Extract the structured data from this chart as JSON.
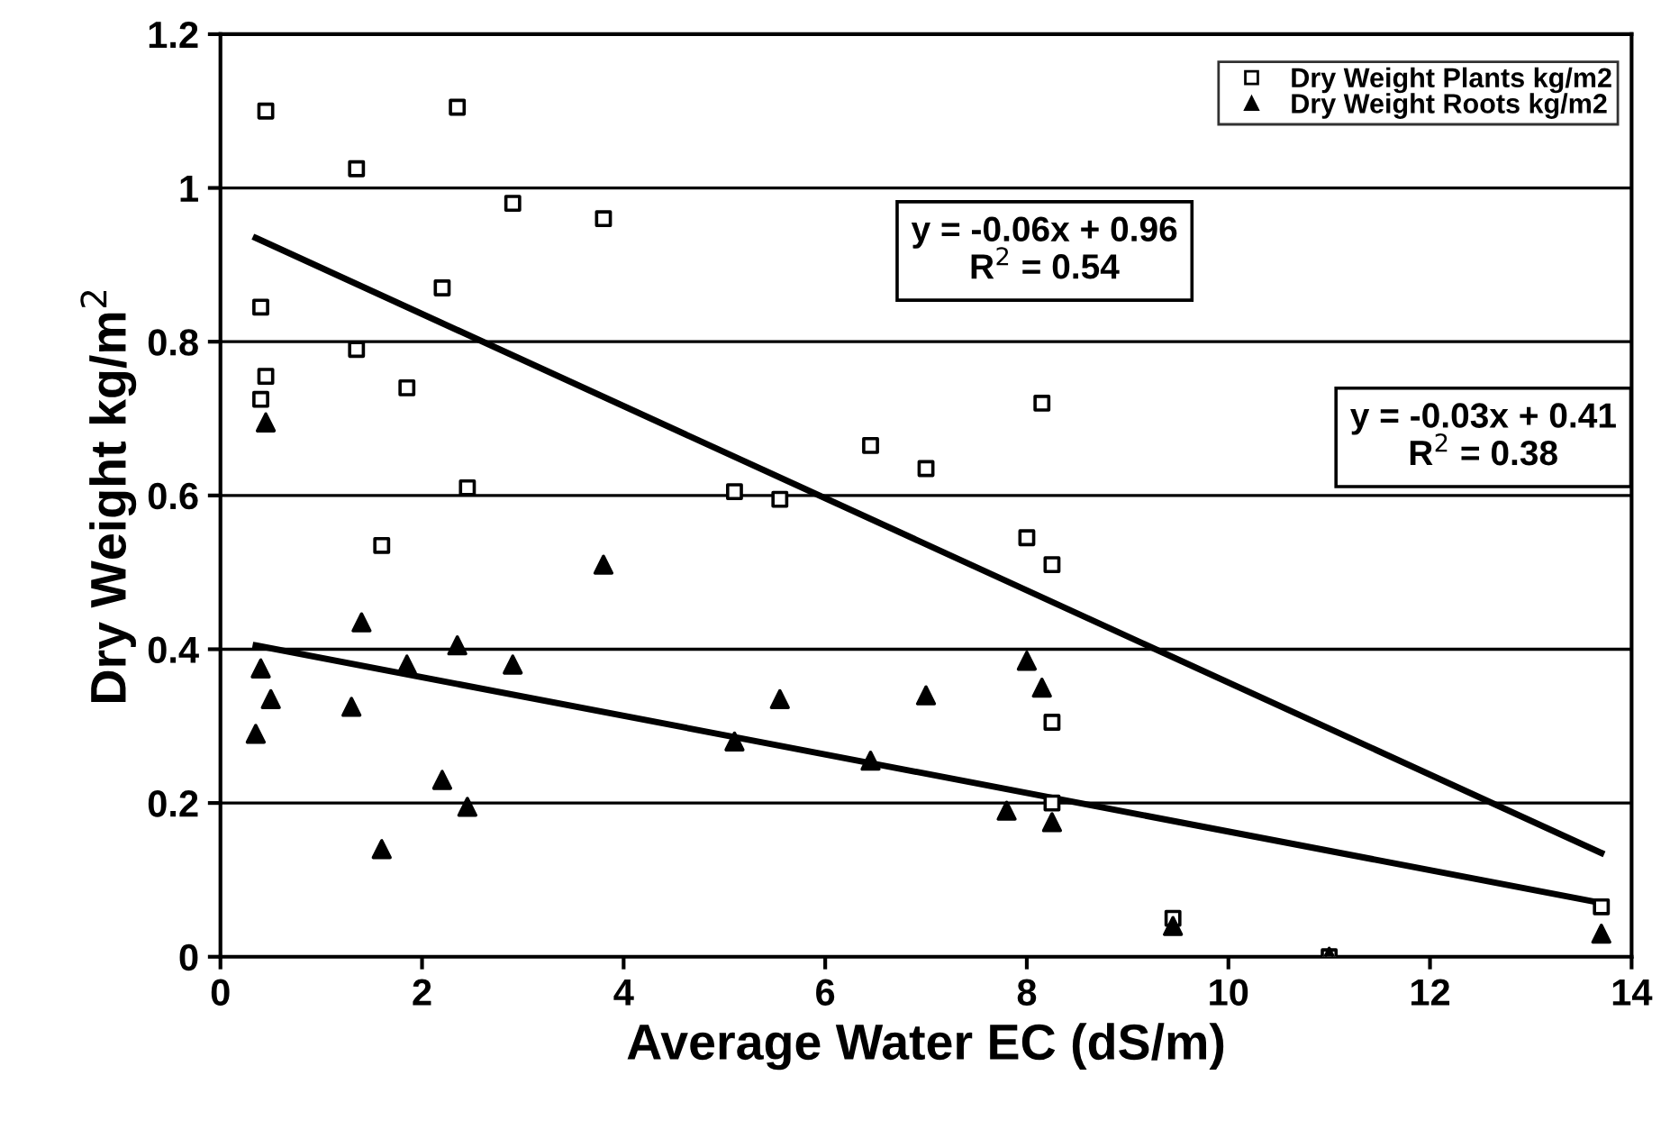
{
  "chart_data": {
    "type": "scatter",
    "xlabel": "Average Water EC (dS/m)",
    "ylabel": "Dry Weight kg/m$^{2}$",
    "xlim": [
      0,
      14
    ],
    "xticks": [
      0,
      2,
      4,
      6,
      8,
      10,
      12,
      14
    ],
    "ylim": [
      0,
      1.2
    ],
    "yticks": [
      0,
      0.2,
      0.4,
      0.6,
      0.8,
      1,
      1.2
    ],
    "grid": "y",
    "legend": "top right",
    "series": [
      {
        "name": "Dry Weight Plants kg/m2",
        "color": "#000000",
        "marker": "square",
        "x": [
          0.4,
          0.45,
          0.45,
          0.4,
          1.35,
          1.35,
          2.35,
          2.2,
          1.85,
          2.9,
          3.8,
          2.45,
          1.6,
          5.1,
          5.55,
          6.45,
          7.0,
          8.15,
          8.0,
          8.25,
          8.25,
          8.25,
          9.45,
          11.0,
          13.7
        ],
        "values": [
          0.845,
          1.1,
          0.755,
          0.725,
          1.025,
          0.79,
          1.105,
          0.87,
          0.74,
          0.98,
          0.96,
          0.61,
          0.535,
          0.605,
          0.595,
          0.665,
          0.635,
          0.72,
          0.545,
          0.51,
          0.305,
          0.2,
          0.05,
          0.0,
          0.065
        ]
      },
      {
        "name": "Dry Weight Roots kg/m2",
        "color": "#000000",
        "marker": "triangle",
        "x": [
          0.45,
          0.4,
          0.5,
          0.35,
          1.4,
          1.3,
          1.85,
          2.35,
          2.2,
          2.45,
          1.6,
          2.9,
          3.8,
          5.1,
          5.55,
          6.45,
          7.0,
          7.8,
          8.0,
          8.15,
          8.25,
          9.45,
          11.0,
          13.7
        ],
        "values": [
          0.695,
          0.375,
          0.335,
          0.29,
          0.435,
          0.325,
          0.38,
          0.405,
          0.23,
          0.195,
          0.14,
          0.38,
          0.51,
          0.28,
          0.335,
          0.255,
          0.34,
          0.19,
          0.385,
          0.35,
          0.175,
          0.04,
          0.0,
          0.03
        ]
      },
      {
        "type": "line",
        "color": "#000000",
        "x": [
          0.35,
          13.7
        ],
        "values": [
          0.935,
          0.135
        ]
      },
      {
        "type": "line",
        "color": "#000000",
        "x": [
          0.35,
          13.7
        ],
        "values": [
          0.405,
          0.07
        ]
      }
    ],
    "annotations": [
      "y = -0.06x + 0.96\nR$^{2}$ = 0.54",
      "y = -0.03x + 0.41\nR$^{2}$ = 0.38"
    ]
  }
}
